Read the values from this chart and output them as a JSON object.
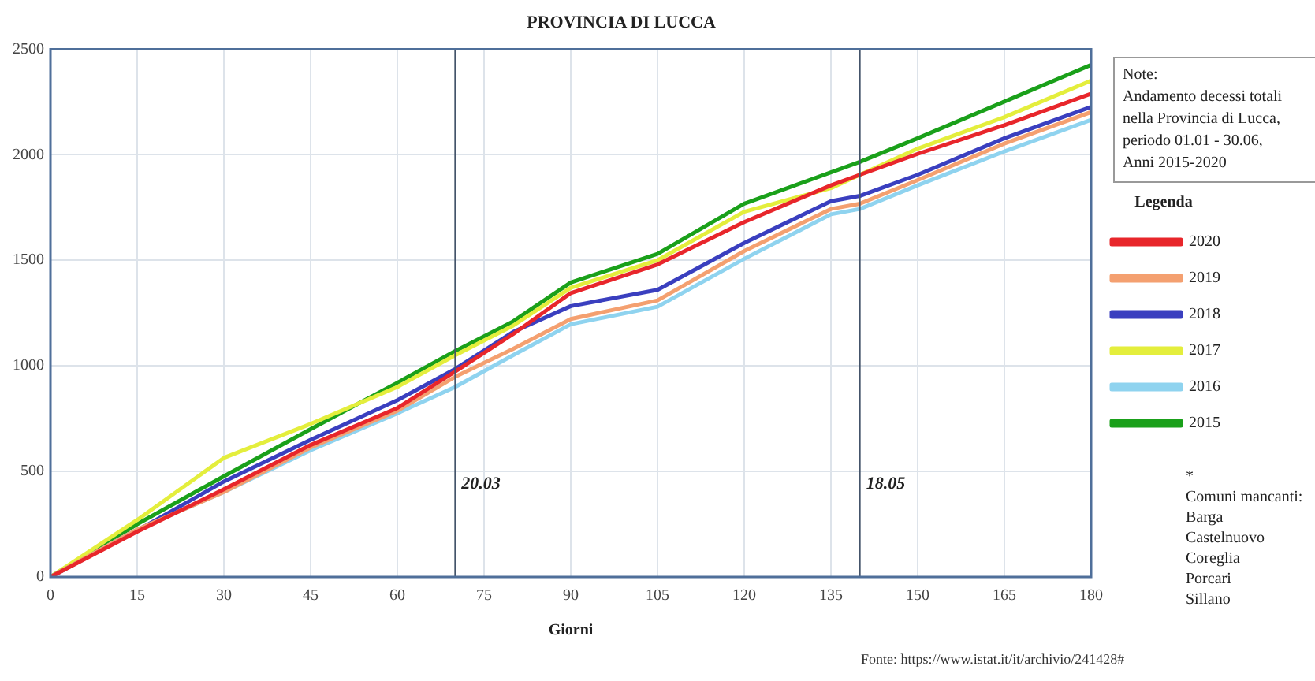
{
  "chart_data": {
    "type": "line",
    "title": "PROVINCIA DI LUCCA",
    "xlabel": "Giorni",
    "legend_title": "Legenda",
    "legend": "right",
    "x": [
      0,
      15,
      30,
      45,
      60,
      70,
      80,
      90,
      105,
      120,
      135,
      140,
      150,
      165,
      180
    ],
    "xlim": [
      0,
      180
    ],
    "xticks": [
      0,
      15,
      30,
      45,
      60,
      75,
      90,
      105,
      120,
      135,
      150,
      165,
      180
    ],
    "ylim": [
      0,
      2500
    ],
    "yticks": [
      0,
      500,
      1000,
      1500,
      2000,
      2500
    ],
    "grid": true,
    "marker": "none",
    "line_style": "solid",
    "series": [
      {
        "name": "2020",
        "color": "#e8262b",
        "values": [
          0,
          215,
          415,
          625,
          800,
          973,
          1150,
          1345,
          1480,
          1681,
          1855,
          1905,
          2004,
          2140,
          2289
        ]
      },
      {
        "name": "2019",
        "color": "#f4a070",
        "values": [
          0,
          225,
          402,
          613,
          787,
          948,
          1080,
          1222,
          1310,
          1544,
          1743,
          1768,
          1880,
          2053,
          2202
        ]
      },
      {
        "name": "2018",
        "color": "#3a3fbf",
        "values": [
          0,
          220,
          452,
          650,
          837,
          985,
          1160,
          1283,
          1360,
          1582,
          1780,
          1805,
          1905,
          2078,
          2227
        ]
      },
      {
        "name": "2017",
        "color": "#e4ee3c",
        "values": [
          0,
          270,
          564,
          725,
          900,
          1050,
          1190,
          1370,
          1500,
          1730,
          1842,
          1905,
          2029,
          2178,
          2351
        ]
      },
      {
        "name": "2016",
        "color": "#8fd3ef",
        "values": [
          0,
          225,
          402,
          600,
          775,
          900,
          1050,
          1197,
          1280,
          1507,
          1718,
          1743,
          1855,
          2016,
          2165
        ]
      },
      {
        "name": "2015",
        "color": "#1aa01a",
        "values": [
          0,
          250,
          477,
          700,
          920,
          1070,
          1210,
          1395,
          1530,
          1768,
          1917,
          1966,
          2078,
          2252,
          2426
        ]
      }
    ],
    "ref_lines": [
      {
        "axis": "x",
        "value": 70,
        "color": "#44546a"
      },
      {
        "axis": "x",
        "value": 140,
        "color": "#44546a"
      }
    ],
    "annotations": [
      {
        "text": "20.03",
        "x": 70,
        "y": 440
      },
      {
        "text": "18.05",
        "x": 140,
        "y": 440
      },
      "Note:\nAndamento decessi totali\nnella Provincia di Lucca,\nperiodo 01.01 - 30.06,\nAnni 2015-2020",
      "*\nComuni mancanti:\nBarga\nCastelnuovo\nCoreglia\nPorcari\nSillano",
      "Fonte: https://www.istat.it/it/archivio/241428#"
    ]
  }
}
